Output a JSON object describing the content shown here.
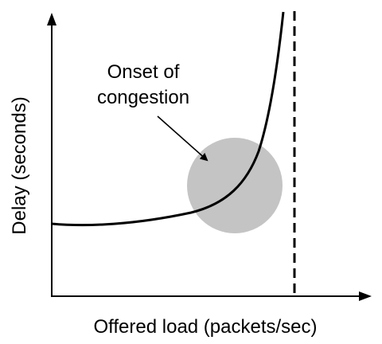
{
  "diagram": {
    "y_axis_label": "Delay (seconds)",
    "x_axis_label": "Offered load (packets/sec)",
    "annotation": {
      "line1": "Onset of",
      "line2": "congestion"
    }
  },
  "colors": {
    "axis": "#000000",
    "curve": "#000000",
    "capacity_line": "#000000",
    "congestion_circle": "#c4c4c4"
  }
}
